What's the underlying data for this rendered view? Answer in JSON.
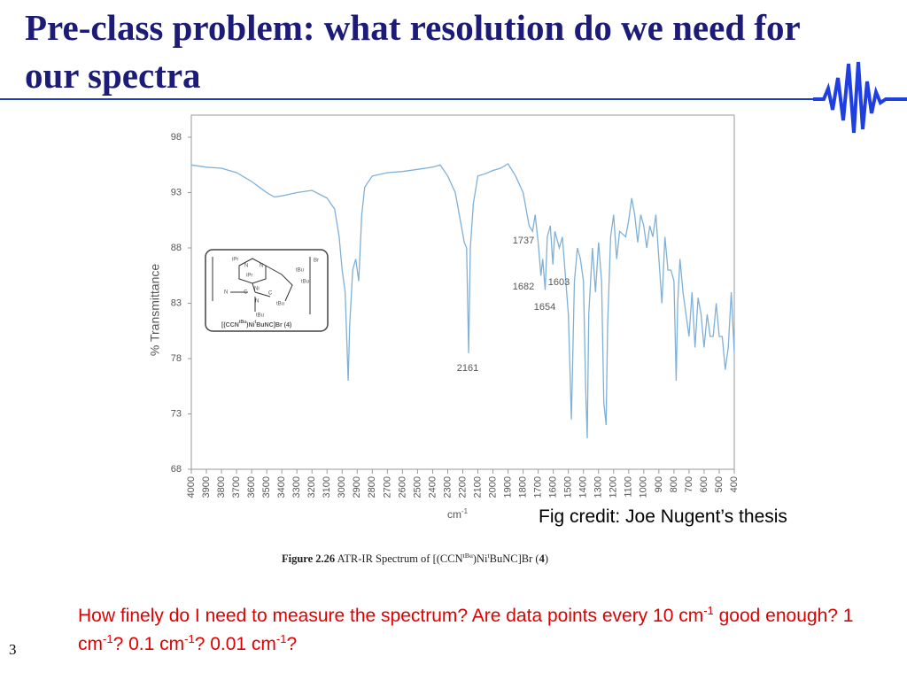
{
  "slide": {
    "title": "Pre-class problem: what resolution do we need for our spectra",
    "credit": "Fig credit: Joe Nugent’s thesis",
    "caption": [
      "Figure 2.26",
      " ATR-IR Spectrum of [(CCN",
      "tBu",
      ")Ni",
      "t",
      "BuNC]Br (",
      "4",
      ")"
    ],
    "question": [
      "How finely do I need to measure the spectrum?  Are data points every 10 cm",
      "-1",
      " good enough?  1 cm",
      "-1",
      "?  0.1 cm",
      "-1",
      "?  0.01 cm",
      "-1",
      "?"
    ],
    "page_number": "3"
  },
  "chart_data": {
    "type": "line",
    "ylabel": "% Transmittance",
    "xlabel": [
      "cm",
      "-1"
    ],
    "color": "#7fb0d8",
    "xlim": [
      4000,
      400
    ],
    "ylim": [
      68,
      100
    ],
    "xticks": [
      4000,
      3900,
      3800,
      3700,
      3600,
      3500,
      3400,
      3300,
      3200,
      3100,
      3000,
      2900,
      2800,
      2700,
      2600,
      2500,
      2400,
      2300,
      2200,
      2100,
      2000,
      1900,
      1800,
      1700,
      1600,
      1500,
      1400,
      1300,
      1200,
      1100,
      1000,
      900,
      800,
      700,
      600,
      500,
      400
    ],
    "yticks": [
      68,
      73,
      78,
      83,
      88,
      93,
      98
    ],
    "x": [
      4000,
      3900,
      3800,
      3700,
      3600,
      3550,
      3500,
      3450,
      3400,
      3300,
      3200,
      3100,
      3050,
      3020,
      3000,
      2980,
      2960,
      2950,
      2930,
      2910,
      2890,
      2870,
      2850,
      2800,
      2700,
      2600,
      2500,
      2400,
      2350,
      2300,
      2250,
      2210,
      2190,
      2175,
      2161,
      2150,
      2130,
      2100,
      2050,
      2000,
      1950,
      1900,
      1850,
      1800,
      1780,
      1760,
      1737,
      1720,
      1700,
      1682,
      1670,
      1654,
      1640,
      1620,
      1603,
      1590,
      1560,
      1540,
      1500,
      1480,
      1460,
      1440,
      1420,
      1400,
      1385,
      1375,
      1365,
      1340,
      1320,
      1300,
      1280,
      1265,
      1250,
      1240,
      1220,
      1200,
      1180,
      1160,
      1120,
      1100,
      1080,
      1060,
      1040,
      1020,
      1000,
      980,
      960,
      940,
      920,
      900,
      880,
      860,
      840,
      820,
      800,
      785,
      775,
      760,
      740,
      720,
      700,
      680,
      660,
      640,
      620,
      600,
      580,
      560,
      540,
      520,
      500,
      480,
      460,
      440,
      420,
      400
    ],
    "values": [
      95.5,
      95.3,
      95.2,
      94.8,
      94.0,
      93.5,
      93.0,
      92.6,
      92.7,
      93.0,
      93.2,
      92.5,
      91.5,
      89,
      86,
      84,
      76,
      81,
      86,
      87,
      85,
      91,
      93.5,
      94.5,
      94.8,
      94.9,
      95.1,
      95.3,
      95.5,
      94.5,
      93,
      90,
      88.5,
      88,
      78.5,
      88,
      92,
      94.5,
      94.7,
      95,
      95.2,
      95.6,
      94.5,
      93,
      91.5,
      90,
      89.5,
      91,
      88.5,
      85.5,
      87,
      84.2,
      89,
      90,
      86.5,
      89.5,
      88,
      89,
      82,
      72.5,
      85,
      88,
      87,
      85,
      75,
      70.8,
      82,
      88,
      84,
      88.5,
      85,
      74,
      72,
      81,
      89,
      91,
      87,
      89.5,
      89,
      90.5,
      92.5,
      91,
      88.5,
      91,
      90,
      88,
      90,
      89,
      91,
      87,
      83,
      89,
      86,
      86,
      85,
      76,
      83,
      87,
      84,
      82,
      80,
      84,
      79,
      83.5,
      82,
      79,
      82,
      80,
      80,
      83,
      80,
      80,
      77,
      79,
      84,
      78.5
    ],
    "annotations": [
      "1737",
      "1682",
      "1603",
      "1654",
      "2161"
    ],
    "structure": {
      "labels": [
        "iPr",
        "iPr",
        "N",
        "N",
        "Br",
        "tBu",
        "N",
        "C",
        "Ni",
        "C",
        "N",
        "tBu",
        "tBu",
        "tBu"
      ],
      "name": [
        "[(CCN",
        "tBu",
        ")Ni",
        "t",
        "BuNC]Br (4)"
      ]
    }
  }
}
